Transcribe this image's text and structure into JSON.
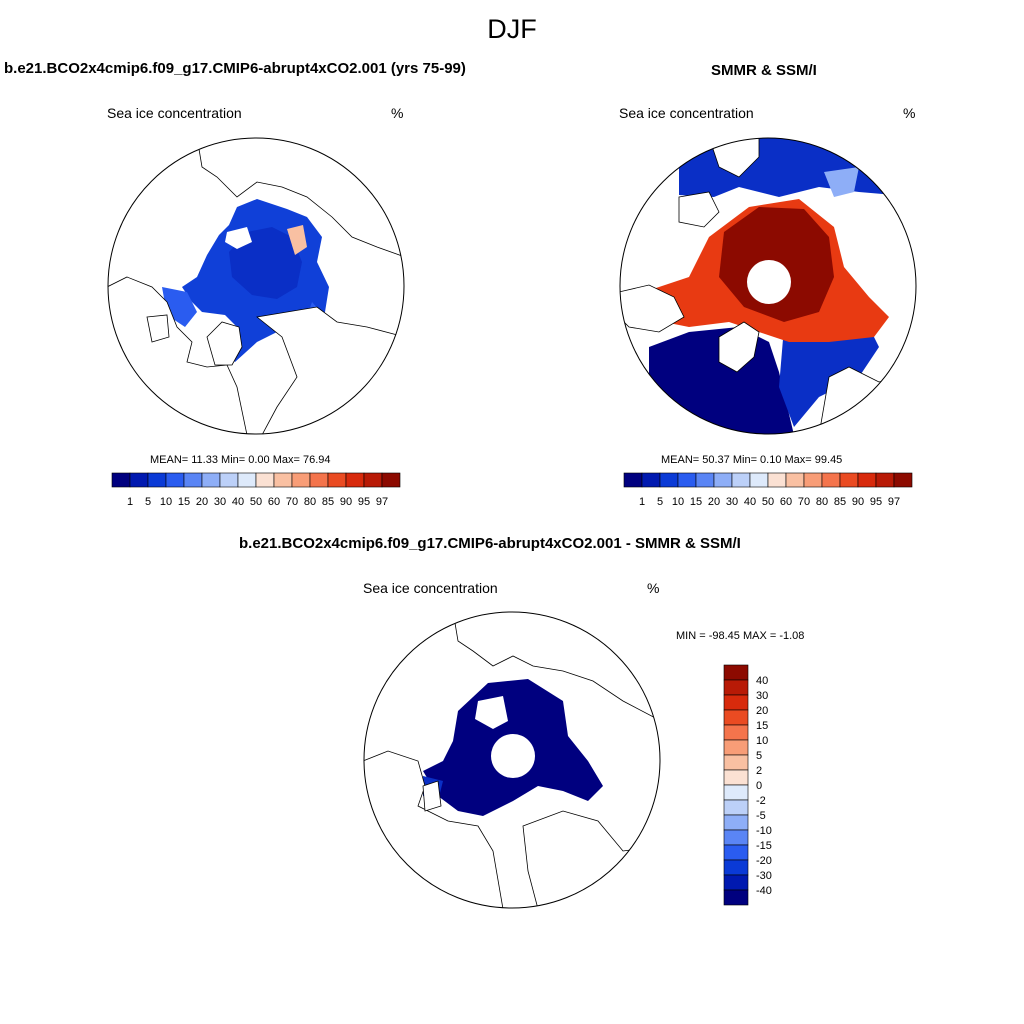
{
  "figure": {
    "title": "DJF"
  },
  "panels": [
    {
      "title": "b.e21.BCO2x4cmip6.f09_g17.CMIP6-abrupt4xCO2.001 (yrs 75-99)",
      "variable": "Sea ice concentration",
      "units": "%",
      "stats": "MEAN=  11.33  Min=   0.00  Max=  76.94"
    },
    {
      "title": "SMMR & SSM/I",
      "variable": "Sea ice concentration",
      "units": "%",
      "stats": "MEAN=  50.37  Min=   0.10  Max=  99.45"
    },
    {
      "title": "b.e21.BCO2x4cmip6.f09_g17.CMIP6-abrupt4xCO2.001 - SMMR & SSM/I",
      "variable": "Sea ice concentration",
      "units": "%",
      "stats": "MIN = -98.45 MAX =  -1.08"
    }
  ],
  "colorbar_abs": {
    "labels": [
      "1",
      "5",
      "10",
      "15",
      "20",
      "30",
      "40",
      "50",
      "60",
      "70",
      "80",
      "85",
      "90",
      "95",
      "97"
    ],
    "colors": [
      "#00007f",
      "#0019b0",
      "#0a3ad6",
      "#2a5cf0",
      "#5a85f5",
      "#8eaef7",
      "#bcd0f8",
      "#deeafb",
      "#fbe1d3",
      "#f9c0a2",
      "#f89d77",
      "#f4744c",
      "#ea4b22",
      "#d82a0c",
      "#b81a06",
      "#8c0a00"
    ]
  },
  "colorbar_diff": {
    "labels": [
      "40",
      "30",
      "20",
      "15",
      "10",
      "5",
      "2",
      "0",
      "-2",
      "-5",
      "-10",
      "-15",
      "-20",
      "-30",
      "-40"
    ],
    "colors": [
      "#8c0a00",
      "#b81a06",
      "#d82a0c",
      "#ea4b22",
      "#f4744c",
      "#f89d77",
      "#f9c0a2",
      "#fbe1d3",
      "#deeafb",
      "#bcd0f8",
      "#8eaef7",
      "#5a85f5",
      "#2a5cf0",
      "#0a3ad6",
      "#0019b0",
      "#00007f"
    ]
  }
}
